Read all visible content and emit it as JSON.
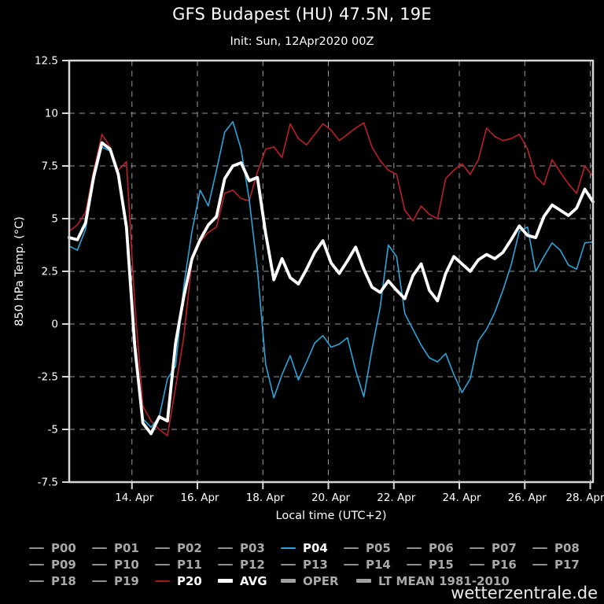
{
  "header": {
    "title": "GFS Budapest (HU) 47.5N, 19E",
    "subtitle": "Init: Sun, 12Apr2020 00Z"
  },
  "watermark": "wetterzentrale.de",
  "colors": {
    "background": "#000000",
    "frame": "#d6d6d6",
    "grid": "#9a9a9a",
    "text": "#ffffff",
    "member_gray": "#a8a8a8",
    "swatch_gray": "#909090",
    "thick_gray": "#a0a0a0",
    "p04_blue": "#2aa6d9",
    "p20_red": "#bb2025",
    "avg_white": "#ffffff"
  },
  "chart_data": {
    "type": "line",
    "title": "GFS Budapest (HU) 47.5N, 19E",
    "subtitle": "Init: Sun, 12Apr2020 00Z",
    "xlabel": "Local time (UTC+2)",
    "ylabel": "850 hPa Temp. (°C)",
    "ylim": [
      -7.5,
      12.5
    ],
    "yticks": [
      12.5,
      10,
      7.5,
      5,
      2.5,
      0,
      -2.5,
      -5,
      -7.5
    ],
    "xtick_labels": [
      "14. Apr",
      "16. Apr",
      "18. Apr",
      "20. Apr",
      "22. Apr",
      "24. Apr",
      "26. Apr",
      "28. Apr"
    ],
    "xtick_first_offset_hours": 46,
    "xtick_interval_hours": 48,
    "x_start": "12. Apr 02:00 local (init 00Z)",
    "step_hours": 6,
    "n_points": 65,
    "grid": "dashed",
    "legend_position": "below",
    "series": [
      {
        "name": "P20",
        "color": "#bb2025",
        "width": 1.6,
        "values": [
          4.4,
          4.7,
          5.3,
          7.3,
          9.0,
          8.4,
          7.3,
          7.7,
          1.0,
          -3.9,
          -4.6,
          -5.0,
          -5.3,
          -3.0,
          -0.6,
          3.0,
          3.9,
          4.35,
          4.6,
          6.2,
          6.35,
          5.95,
          5.85,
          7.2,
          8.3,
          8.4,
          7.9,
          9.5,
          8.8,
          8.5,
          9.0,
          9.5,
          9.2,
          8.7,
          9.0,
          9.3,
          9.55,
          8.4,
          7.75,
          7.3,
          7.1,
          5.4,
          4.9,
          5.6,
          5.2,
          5.0,
          6.9,
          7.3,
          7.6,
          7.1,
          7.8,
          9.3,
          8.9,
          8.7,
          8.8,
          9.0,
          8.3,
          7.0,
          6.6,
          7.8,
          7.2,
          6.65,
          6.2,
          7.5,
          7.0
        ]
      },
      {
        "name": "P04",
        "color": "#2aa6d9",
        "width": 1.6,
        "values": [
          3.7,
          3.5,
          4.5,
          6.8,
          8.4,
          8.2,
          7.0,
          4.3,
          -1.5,
          -4.5,
          -4.9,
          -4.4,
          -2.6,
          -2.0,
          1.8,
          4.4,
          6.35,
          5.6,
          7.3,
          9.1,
          9.6,
          8.3,
          5.9,
          2.6,
          -1.9,
          -3.5,
          -2.4,
          -1.5,
          -2.65,
          -1.8,
          -0.9,
          -0.55,
          -1.1,
          -0.95,
          -0.65,
          -2.2,
          -3.45,
          -1.2,
          0.8,
          3.75,
          3.2,
          0.5,
          -0.25,
          -1.0,
          -1.6,
          -1.8,
          -1.4,
          -2.4,
          -3.25,
          -2.6,
          -0.8,
          -0.25,
          0.55,
          1.6,
          2.8,
          4.4,
          4.6,
          2.5,
          3.2,
          3.85,
          3.5,
          2.8,
          2.6,
          3.85,
          3.9
        ]
      },
      {
        "name": "AVG",
        "color": "#ffffff",
        "width": 3.8,
        "values": [
          4.1,
          4.0,
          4.8,
          7.0,
          8.6,
          8.3,
          7.1,
          4.6,
          -1.0,
          -4.7,
          -5.2,
          -4.4,
          -4.6,
          -0.9,
          1.3,
          3.1,
          4.0,
          4.7,
          5.1,
          6.9,
          7.5,
          7.65,
          6.8,
          6.95,
          4.3,
          2.1,
          3.1,
          2.2,
          1.9,
          2.6,
          3.4,
          3.95,
          2.9,
          2.4,
          3.0,
          3.65,
          2.6,
          1.75,
          1.5,
          2.05,
          1.6,
          1.2,
          2.3,
          2.85,
          1.6,
          1.1,
          2.4,
          3.2,
          2.85,
          2.5,
          3.05,
          3.3,
          3.1,
          3.4,
          4.0,
          4.65,
          4.2,
          4.1,
          5.1,
          5.65,
          5.4,
          5.15,
          5.5,
          6.4,
          5.8
        ]
      }
    ]
  },
  "legend": {
    "rows": [
      [
        {
          "label": "P00",
          "swatch": "#909090",
          "text": "#a8a8a8",
          "thick": false
        },
        {
          "label": "P01",
          "swatch": "#909090",
          "text": "#a8a8a8",
          "thick": false
        },
        {
          "label": "P02",
          "swatch": "#909090",
          "text": "#a8a8a8",
          "thick": false
        },
        {
          "label": "P03",
          "swatch": "#909090",
          "text": "#a8a8a8",
          "thick": false
        },
        {
          "label": "P04",
          "swatch": "#2aa6d9",
          "text": "#ffffff",
          "thick": false
        },
        {
          "label": "P05",
          "swatch": "#909090",
          "text": "#a8a8a8",
          "thick": false
        },
        {
          "label": "P06",
          "swatch": "#909090",
          "text": "#a8a8a8",
          "thick": false
        },
        {
          "label": "P07",
          "swatch": "#909090",
          "text": "#a8a8a8",
          "thick": false
        },
        {
          "label": "P08",
          "swatch": "#909090",
          "text": "#a8a8a8",
          "thick": false
        }
      ],
      [
        {
          "label": "P09",
          "swatch": "#909090",
          "text": "#a8a8a8",
          "thick": false
        },
        {
          "label": "P10",
          "swatch": "#909090",
          "text": "#a8a8a8",
          "thick": false
        },
        {
          "label": "P11",
          "swatch": "#909090",
          "text": "#a8a8a8",
          "thick": false
        },
        {
          "label": "P12",
          "swatch": "#909090",
          "text": "#a8a8a8",
          "thick": false
        },
        {
          "label": "P13",
          "swatch": "#909090",
          "text": "#a8a8a8",
          "thick": false
        },
        {
          "label": "P14",
          "swatch": "#909090",
          "text": "#a8a8a8",
          "thick": false
        },
        {
          "label": "P15",
          "swatch": "#909090",
          "text": "#a8a8a8",
          "thick": false
        },
        {
          "label": "P16",
          "swatch": "#909090",
          "text": "#a8a8a8",
          "thick": false
        },
        {
          "label": "P17",
          "swatch": "#909090",
          "text": "#a8a8a8",
          "thick": false
        }
      ],
      [
        {
          "label": "P18",
          "swatch": "#909090",
          "text": "#a8a8a8",
          "thick": false
        },
        {
          "label": "P19",
          "swatch": "#909090",
          "text": "#a8a8a8",
          "thick": false
        },
        {
          "label": "P20",
          "swatch": "#9c1a1f",
          "text": "#ffffff",
          "thick": false
        },
        {
          "label": "AVG",
          "swatch": "#ffffff",
          "text": "#ffffff",
          "thick": true
        },
        {
          "label": "OPER",
          "swatch": "#a0a0a0",
          "text": "#a8a8a8",
          "thick": true
        },
        {
          "label": "LT MEAN 1981-2010",
          "swatch": "#a0a0a0",
          "text": "#a8a8a8",
          "thick": true
        }
      ]
    ]
  }
}
